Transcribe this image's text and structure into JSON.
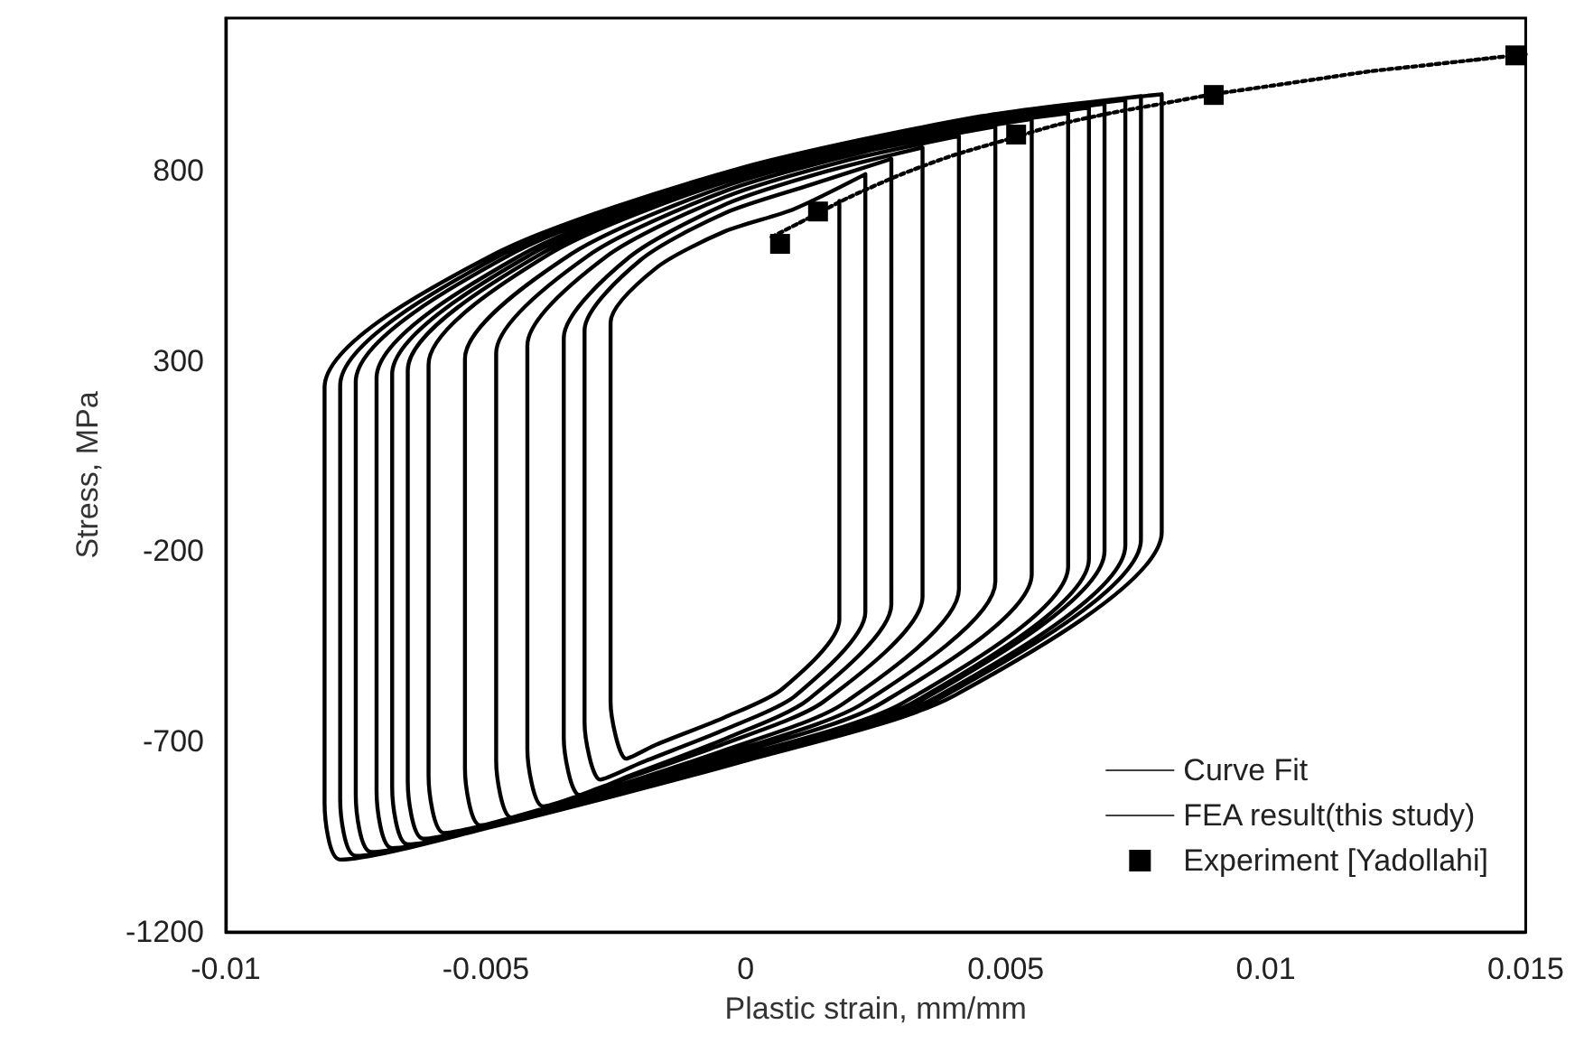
{
  "chart_data": {
    "type": "line",
    "xlabel": "Plastic strain, mm/mm",
    "ylabel": "Stress, MPa",
    "xlim": [
      -0.01,
      0.015
    ],
    "xticks": [
      -0.01,
      -0.005,
      0,
      0.005,
      0.01,
      0.015
    ],
    "ylim": [
      -1200,
      1200
    ],
    "yticks": [
      -1200,
      -700,
      -200,
      300,
      800
    ],
    "grid": false,
    "legend": "bottom right",
    "series": [
      {
        "name": "Curve Fit",
        "type": "line",
        "line_style": "dotted",
        "marker": "none",
        "color": "#000000",
        "x": [
          0.0005,
          0.001,
          0.002,
          0.003,
          0.004,
          0.005,
          0.006,
          0.007,
          0.008,
          0.009,
          0.01,
          0.011,
          0.012,
          0.013,
          0.014,
          0.015
        ],
        "values": [
          625,
          660,
          730,
          790,
          840,
          880,
          920,
          950,
          975,
          1000,
          1020,
          1040,
          1060,
          1075,
          1090,
          1105
        ]
      },
      {
        "name": "FEA result(this study)",
        "type": "line",
        "line_style": "solid",
        "marker": "none",
        "color": "#000000",
        "x": [
          0.0018,
          0.0018,
          0.0018,
          0.0007,
          -0.0004,
          -0.00172,
          -0.0023,
          -0.0026,
          -0.0026,
          -0.00172,
          -0.0004,
          0.00092,
          0.0023,
          0.0023,
          0.0023,
          0.00095,
          -0.0004,
          -0.00202,
          -0.0028,
          -0.0031,
          -0.0031,
          -0.00202,
          -0.0004,
          0.00122,
          0.0028,
          0.0028,
          0.0028,
          0.0012,
          -0.00035,
          -0.00224,
          -0.0032,
          -0.0035,
          -0.0035,
          -0.00224,
          -0.00035,
          0.00154,
          0.0034,
          0.0034,
          0.0034,
          0.0015,
          -0.0004,
          -0.00268,
          -0.0039,
          -0.0042,
          -0.0042,
          -0.00268,
          -0.0004,
          0.00188,
          0.0041,
          0.0041,
          0.0041,
          0.00188,
          -0.00035,
          -0.00302,
          -0.0045,
          -0.0048,
          -0.0048,
          -0.00302,
          -0.00035,
          0.00232,
          0.0048,
          0.0048,
          0.0048,
          0.00225,
          -0.0003,
          -0.00336,
          -0.0051,
          -0.0054,
          -0.0054,
          -0.00336,
          -0.0003,
          0.00276,
          0.0055,
          0.0055,
          0.0055,
          0.0026,
          -0.0003,
          -0.00378,
          -0.0058,
          -0.0061,
          -0.0061,
          -0.00378,
          -0.0003,
          0.00318,
          0.0062,
          0.0062,
          0.0062,
          0.00303,
          -0.00015,
          -0.00396,
          -0.0062,
          -0.0065,
          -0.0065,
          -0.00396,
          -0.00015,
          0.00366,
          0.0066,
          0.0066,
          0.0066,
          0.00325,
          -0.0001,
          -0.00412,
          -0.0065,
          -0.0068,
          -0.0068,
          -0.00412,
          -0.0001,
          0.00392,
          0.0069,
          0.0069,
          0.0069,
          0.0034,
          -0.0001,
          -0.0043,
          -0.0068,
          -0.0071,
          -0.0071,
          -0.0043,
          -0.0001,
          0.0041,
          0.0073,
          0.0073,
          0.0073,
          0.0036,
          -0.0001,
          -0.00454,
          -0.0072,
          -0.0075,
          -0.0075,
          -0.00454,
          -0.0001,
          0.00434,
          0.0076,
          0.0076,
          0.0076,
          0.00375,
          -0.0001,
          -0.00472,
          -0.0075,
          -0.0078,
          -0.0078,
          -0.00472,
          -0.0001,
          0.00452,
          0.008,
          0.008,
          0.008,
          0.004,
          -5e-05,
          -0.00488,
          -0.0078,
          -0.0081,
          -0.0081,
          -0.00488,
          -5e-05,
          0.00478,
          0.008
        ],
        "values": [
          720,
          300,
          -380,
          -562,
          -636,
          -708,
          -745,
          -595,
          400,
          544,
          640,
          698,
          790,
          300,
          -360,
          -580,
          -668,
          -756,
          -800,
          -650,
          380,
          565,
          688,
          761,
          830,
          300,
          -340,
          -590,
          -690,
          -790,
          -840,
          -690,
          360,
          572,
          713,
          797,
          860,
          300,
          -320,
          -595,
          -705,
          -815,
          -870,
          -720,
          340,
          574,
          730,
          824,
          890,
          300,
          -300,
          -600,
          -720,
          -840,
          -900,
          -750,
          320,
          577,
          748,
          850,
          915,
          300,
          -280,
          -600,
          -728,
          -856,
          -920,
          -770,
          305,
          580,
          763,
          872,
          935,
          300,
          -260,
          -600,
          -736,
          -872,
          -940,
          -790,
          290,
          580,
          774,
          890,
          950,
          300,
          -240,
          -598,
          -740,
          -884,
          -955,
          -805,
          275,
          579,
          781,
          903,
          965,
          300,
          -220,
          -595,
          -745,
          -895,
          -970,
          -820,
          265,
          580,
          790,
          916,
          975,
          300,
          -200,
          -590,
          -746,
          -902,
          -980,
          -830,
          255,
          579,
          795,
          925,
          985,
          300,
          -185,
          -588,
          -749,
          -910,
          -990,
          -840,
          245,
          578,
          800,
          933,
          995,
          300,
          -170,
          -585,
          -751,
          -917,
          -1000,
          -850,
          235,
          577,
          805,
          942,
          1000,
          300,
          -150,
          -580,
          -752,
          -924,
          -1010,
          -860,
          230,
          577,
          808,
          946,
          1000
        ]
      },
      {
        "name": "Experiment [Yadollahi]",
        "type": "scatter",
        "marker": "square",
        "color": "#000000",
        "x": [
          0.00066,
          0.00139,
          0.0052,
          0.009,
          0.0148
        ],
        "values": [
          607,
          692,
          894,
          998,
          1102
        ]
      }
    ]
  }
}
